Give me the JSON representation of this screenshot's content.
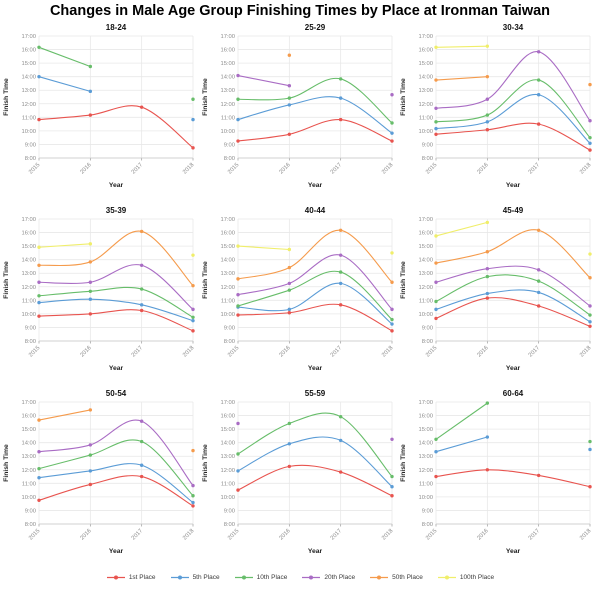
{
  "chart_data": {
    "type": "line",
    "title": "Changes in Male Age Group Finishing Times by Place at Ironman Taiwan",
    "xlabel": "Year",
    "ylabel": "Finish Time",
    "x": [
      "2015",
      "2016",
      "2017",
      "2018"
    ],
    "ylim_hours": [
      8,
      17
    ],
    "ytick_labels": [
      "8:00",
      "9:00",
      "10:00",
      "11:00",
      "12:00",
      "13:00",
      "14:00",
      "15:00",
      "16:00",
      "17:00"
    ],
    "grid": true,
    "legend_position": "bottom",
    "series_names": [
      "1st Place",
      "5th Place",
      "10th Place",
      "20th Place",
      "50th Place",
      "100th Place"
    ],
    "series_colors": {
      "1st Place": "#e8544f",
      "5th Place": "#5b9cd6",
      "10th Place": "#67bd6a",
      "20th Place": "#a96cc4",
      "50th Place": "#f59b4c",
      "100th Place": "#f0ee6a"
    },
    "subplots": [
      {
        "age_group": "18-24",
        "series": [
          {
            "name": "1st Place",
            "times": [
              "10:50",
              "11:10",
              "11:45",
              "8:45"
            ]
          },
          {
            "name": "5th Place",
            "times": [
              "14:00",
              "12:55",
              null,
              "10:50"
            ]
          },
          {
            "name": "10th Place",
            "times": [
              "16:10",
              "14:45",
              null,
              "12:20"
            ]
          }
        ]
      },
      {
        "age_group": "25-29",
        "series": [
          {
            "name": "1st Place",
            "times": [
              "9:15",
              "9:45",
              "10:50",
              "9:15"
            ]
          },
          {
            "name": "5th Place",
            "times": [
              "10:50",
              "11:55",
              "12:25",
              "9:50"
            ]
          },
          {
            "name": "10th Place",
            "times": [
              "12:20",
              "12:25",
              "13:50",
              "10:35"
            ]
          },
          {
            "name": "20th Place",
            "times": [
              "14:05",
              "13:20",
              null,
              "12:40"
            ]
          },
          {
            "name": "50th Place",
            "times": [
              null,
              "15:35",
              null,
              null
            ]
          }
        ]
      },
      {
        "age_group": "30-34",
        "series": [
          {
            "name": "1st Place",
            "times": [
              "9:45",
              "10:05",
              "10:30",
              "8:35"
            ]
          },
          {
            "name": "5th Place",
            "times": [
              "10:10",
              "10:40",
              "12:40",
              "9:05"
            ]
          },
          {
            "name": "10th Place",
            "times": [
              "10:40",
              "11:10",
              "13:45",
              "9:30"
            ]
          },
          {
            "name": "20th Place",
            "times": [
              "11:40",
              "12:20",
              "15:50",
              "10:45"
            ]
          },
          {
            "name": "50th Place",
            "times": [
              "13:45",
              "14:00",
              null,
              "13:25"
            ]
          },
          {
            "name": "100th Place",
            "times": [
              "16:10",
              "16:15",
              null,
              null
            ]
          }
        ]
      },
      {
        "age_group": "35-39",
        "series": [
          {
            "name": "1st Place",
            "times": [
              "9:50",
              "10:00",
              "10:15",
              "8:45"
            ]
          },
          {
            "name": "5th Place",
            "times": [
              "10:50",
              "11:05",
              "10:40",
              "9:30"
            ]
          },
          {
            "name": "10th Place",
            "times": [
              "11:20",
              "11:40",
              "11:50",
              "9:45"
            ]
          },
          {
            "name": "20th Place",
            "times": [
              "12:20",
              "12:20",
              "13:35",
              "10:20"
            ]
          },
          {
            "name": "50th Place",
            "times": [
              "13:35",
              "13:50",
              "16:05",
              "12:05"
            ]
          },
          {
            "name": "100th Place",
            "times": [
              "14:55",
              "15:10",
              null,
              "14:20"
            ]
          }
        ]
      },
      {
        "age_group": "40-44",
        "series": [
          {
            "name": "1st Place",
            "times": [
              "9:55",
              "10:05",
              "10:40",
              "8:45"
            ]
          },
          {
            "name": "5th Place",
            "times": [
              "10:30",
              "10:20",
              "12:15",
              "9:15"
            ]
          },
          {
            "name": "10th Place",
            "times": [
              "10:35",
              "11:45",
              "13:05",
              "9:35"
            ]
          },
          {
            "name": "20th Place",
            "times": [
              "11:25",
              "12:15",
              "14:20",
              "10:20"
            ]
          },
          {
            "name": "50th Place",
            "times": [
              "12:35",
              "13:25",
              "16:10",
              "12:20"
            ]
          },
          {
            "name": "100th Place",
            "times": [
              "15:00",
              "14:45",
              null,
              "14:30"
            ]
          }
        ]
      },
      {
        "age_group": "45-49",
        "series": [
          {
            "name": "1st Place",
            "times": [
              "9:40",
              "11:10",
              "10:35",
              "9:05"
            ]
          },
          {
            "name": "5th Place",
            "times": [
              "10:20",
              "11:30",
              "11:35",
              "9:25"
            ]
          },
          {
            "name": "10th Place",
            "times": [
              "10:55",
              "12:45",
              "12:25",
              "9:55"
            ]
          },
          {
            "name": "20th Place",
            "times": [
              "12:20",
              "13:20",
              "13:15",
              "10:35"
            ]
          },
          {
            "name": "50th Place",
            "times": [
              "13:45",
              "14:35",
              "16:10",
              "12:40"
            ]
          },
          {
            "name": "100th Place",
            "times": [
              "15:45",
              "16:45",
              null,
              "14:25"
            ]
          }
        ]
      },
      {
        "age_group": "50-54",
        "series": [
          {
            "name": "1st Place",
            "times": [
              "9:45",
              "10:55",
              "11:30",
              "9:20"
            ]
          },
          {
            "name": "5th Place",
            "times": [
              "11:25",
              "11:55",
              "12:20",
              "9:35"
            ]
          },
          {
            "name": "10th Place",
            "times": [
              "12:05",
              "13:05",
              "14:05",
              "10:05"
            ]
          },
          {
            "name": "20th Place",
            "times": [
              "13:20",
              "13:50",
              "15:35",
              "10:50"
            ]
          },
          {
            "name": "50th Place",
            "times": [
              "15:40",
              "16:25",
              null,
              "13:25"
            ]
          }
        ]
      },
      {
        "age_group": "55-59",
        "series": [
          {
            "name": "1st Place",
            "times": [
              "10:30",
              "12:15",
              "11:50",
              "10:05"
            ]
          },
          {
            "name": "5th Place",
            "times": [
              "11:55",
              "13:55",
              "14:10",
              "10:45"
            ]
          },
          {
            "name": "10th Place",
            "times": [
              "13:10",
              "15:25",
              "15:55",
              "11:30"
            ]
          },
          {
            "name": "20th Place",
            "times": [
              "15:25",
              null,
              null,
              "14:15"
            ]
          }
        ]
      },
      {
        "age_group": "60-64",
        "series": [
          {
            "name": "1st Place",
            "times": [
              "11:30",
              "12:00",
              "11:35",
              "10:45"
            ]
          },
          {
            "name": "5th Place",
            "times": [
              "13:20",
              "14:25",
              null,
              "13:30"
            ]
          },
          {
            "name": "10th Place",
            "times": [
              "14:15",
              "16:55",
              null,
              "14:05"
            ]
          }
        ]
      }
    ]
  }
}
